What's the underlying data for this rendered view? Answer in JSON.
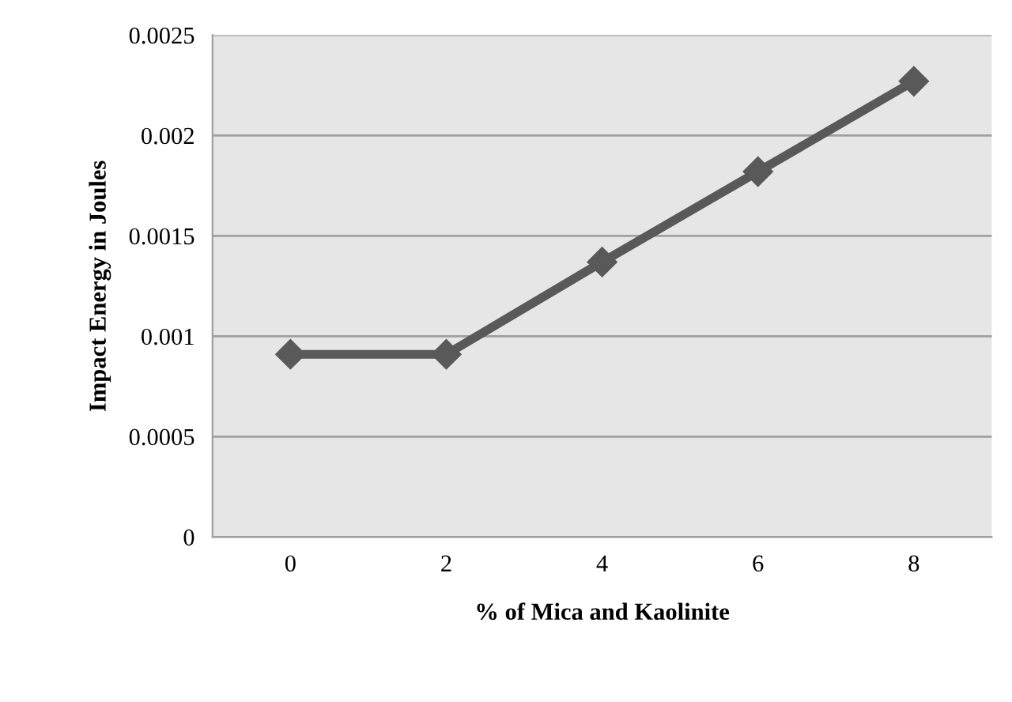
{
  "chart_data": {
    "type": "line",
    "xlabel": "% of Mica and Kaolinite",
    "ylabel": "Impact Energy in Joules",
    "categories": [
      "0",
      "2",
      "4",
      "6",
      "8"
    ],
    "series": [
      {
        "color": "#595959",
        "values": [
          0.00091,
          0.00091,
          0.00137,
          0.00182,
          0.00227
        ]
      }
    ],
    "ylim": [
      0,
      0.0025
    ],
    "yticks": [
      0,
      0.0005,
      0.001,
      0.0015,
      0.002,
      0.0025
    ],
    "grid": "y",
    "marker": "diamond",
    "line_style": "solid",
    "legend": false
  }
}
